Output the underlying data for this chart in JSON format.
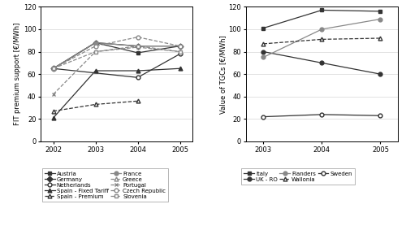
{
  "left": {
    "years": [
      2002,
      2003,
      2004,
      2005
    ],
    "ylabel": "FIT premium support [€/MWh]",
    "ylim": [
      0,
      120
    ],
    "yticks": [
      0,
      20,
      40,
      60,
      80,
      100,
      120
    ],
    "series": [
      {
        "label": "Austria",
        "data": [
          65,
          88,
          79,
          85
        ],
        "marker": "s",
        "filled": true,
        "linestyle": "-",
        "color": "#333333"
      },
      {
        "label": "Germany",
        "data": [
          65,
          88,
          85,
          85
        ],
        "marker": "D",
        "filled": true,
        "linestyle": "-",
        "color": "#333333"
      },
      {
        "label": "Netherlands",
        "data": [
          65,
          null,
          57,
          78
        ],
        "marker": "o",
        "filled": false,
        "linestyle": "-",
        "color": "#333333"
      },
      {
        "label": "Spain - Fixed Tariff",
        "data": [
          21,
          63,
          63,
          65
        ],
        "marker": "^",
        "filled": true,
        "linestyle": "-",
        "color": "#333333"
      },
      {
        "label": "Spain - Premium",
        "data": [
          27,
          33,
          36,
          null
        ],
        "marker": "^",
        "filled": false,
        "linestyle": "--",
        "color": "#333333"
      },
      {
        "label": "France",
        "data": [
          65,
          88,
          85,
          85
        ],
        "marker": "o",
        "filled": true,
        "linestyle": "-",
        "color": "#888888"
      },
      {
        "label": "Greece",
        "data": [
          65,
          null,
          null,
          null
        ],
        "marker": "^",
        "filled": false,
        "linestyle": "--",
        "color": "#888888"
      },
      {
        "label": "Portugal",
        "data": [
          42,
          80,
          84,
          80
        ],
        "marker": "x",
        "filled": false,
        "linestyle": "--",
        "color": "#888888"
      },
      {
        "label": "Czech Republic",
        "data": [
          65,
          85,
          93,
          85
        ],
        "marker": "o",
        "filled": false,
        "linestyle": "--",
        "color": "#888888"
      },
      {
        "label": "Slovenia",
        "data": [
          65,
          80,
          85,
          80
        ],
        "marker": "s",
        "filled": false,
        "linestyle": "--",
        "color": "#888888"
      }
    ]
  },
  "right": {
    "years": [
      2003,
      2004,
      2005
    ],
    "ylabel": "Value of TGCs [€/MWh]",
    "ylim": [
      0,
      120
    ],
    "yticks": [
      0,
      20,
      40,
      60,
      80,
      100,
      120
    ],
    "series": [
      {
        "label": "Italy",
        "data": [
          101,
          117,
          116
        ],
        "marker": "s",
        "filled": true,
        "linestyle": "-",
        "color": "#333333"
      },
      {
        "label": "UK - RO",
        "data": [
          80,
          70,
          60
        ],
        "marker": "o",
        "filled": true,
        "linestyle": "-",
        "color": "#333333"
      },
      {
        "label": "Flanders",
        "data": [
          75,
          100,
          109
        ],
        "marker": "o",
        "filled": true,
        "linestyle": "-",
        "color": "#888888"
      },
      {
        "label": "Wallonia",
        "data": [
          87,
          91,
          92
        ],
        "marker": "^",
        "filled": false,
        "linestyle": "--",
        "color": "#333333"
      },
      {
        "label": "Sweden",
        "data": [
          22,
          24,
          23
        ],
        "marker": "o",
        "filled": false,
        "linestyle": "-",
        "color": "#333333"
      }
    ]
  }
}
